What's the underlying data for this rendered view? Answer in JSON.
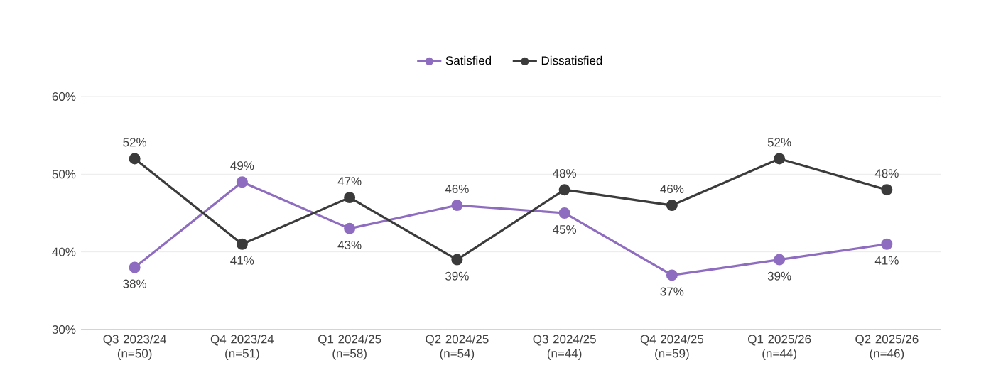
{
  "chart_data": {
    "type": "line",
    "categories": [
      "Q3 2023/24 (n=50)",
      "Q4 2023/24 (n=51)",
      "Q1 2024/25 (n=58)",
      "Q2 2024/25 (n=54)",
      "Q3 2024/25 (n=44)",
      "Q4 2024/25 (n=59)",
      "Q1 2025/26 (n=44)",
      "Q2 2025/26 (n=46)"
    ],
    "series": [
      {
        "name": "Satisfied",
        "color": "#8e6cc0",
        "values": [
          38,
          49,
          43,
          46,
          45,
          37,
          39,
          41
        ],
        "value_labels": [
          "38%",
          "49%",
          "43%",
          "46%",
          "45%",
          "37%",
          "39%",
          "41%"
        ]
      },
      {
        "name": "Dissatisfied",
        "color": "#3b3b3b",
        "values": [
          52,
          41,
          47,
          39,
          48,
          46,
          52,
          48
        ],
        "value_labels": [
          "52%",
          "41%",
          "47%",
          "39%",
          "48%",
          "46%",
          "52%",
          "48%"
        ]
      }
    ],
    "ylim": [
      30,
      60
    ],
    "yticks": [
      {
        "value": 30,
        "label": "30%"
      },
      {
        "value": 40,
        "label": "40%"
      },
      {
        "value": 50,
        "label": "50%"
      },
      {
        "value": 60,
        "label": "60%"
      }
    ],
    "grid": "y",
    "legend": "top",
    "marker": "circle",
    "line_style": "solid"
  }
}
